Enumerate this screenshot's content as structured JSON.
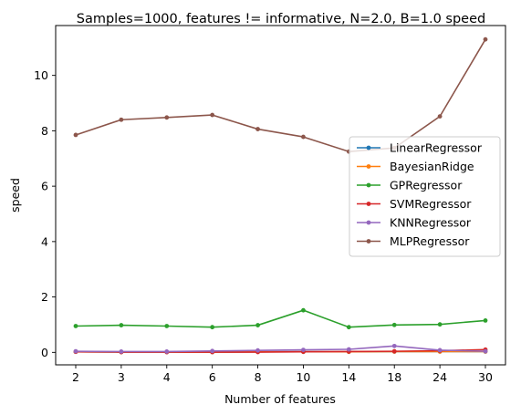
{
  "chart_data": {
    "type": "line",
    "title": "Samples=1000, features != informative, N=2.0, B=1.0 speed",
    "xlabel": "Number of features",
    "ylabel": "speed",
    "categories": [
      "2",
      "3",
      "4",
      "6",
      "8",
      "10",
      "14",
      "18",
      "24",
      "30"
    ],
    "yticks": [
      0,
      2,
      4,
      6,
      8,
      10
    ],
    "ylim": [
      -0.45,
      11.8
    ],
    "grid": false,
    "legend_position": "center-right",
    "series": [
      {
        "name": "LinearRegressor",
        "color": "#1f77b4",
        "values": [
          0.02,
          0.01,
          0.01,
          0.01,
          0.02,
          0.02,
          0.02,
          0.03,
          0.03,
          0.03
        ]
      },
      {
        "name": "BayesianRidge",
        "color": "#ff7f0e",
        "values": [
          0.02,
          0.01,
          0.01,
          0.01,
          0.02,
          0.02,
          0.02,
          0.03,
          0.03,
          0.03
        ]
      },
      {
        "name": "GPRegressor",
        "color": "#2ca02c",
        "values": [
          0.95,
          0.98,
          0.95,
          0.91,
          0.98,
          1.52,
          0.91,
          0.99,
          1.01,
          1.15
        ]
      },
      {
        "name": "SVMRegressor",
        "color": "#d62728",
        "values": [
          0.02,
          0.01,
          0.01,
          0.01,
          0.01,
          0.02,
          0.03,
          0.04,
          0.06,
          0.1
        ]
      },
      {
        "name": "KNNRegressor",
        "color": "#9467bd",
        "values": [
          0.04,
          0.03,
          0.03,
          0.05,
          0.07,
          0.09,
          0.11,
          0.23,
          0.08,
          0.04
        ]
      },
      {
        "name": "MLPRegressor",
        "color": "#8c564b",
        "values": [
          7.85,
          8.4,
          8.48,
          8.57,
          8.06,
          7.78,
          7.25,
          7.38,
          8.52,
          11.3
        ]
      }
    ]
  }
}
